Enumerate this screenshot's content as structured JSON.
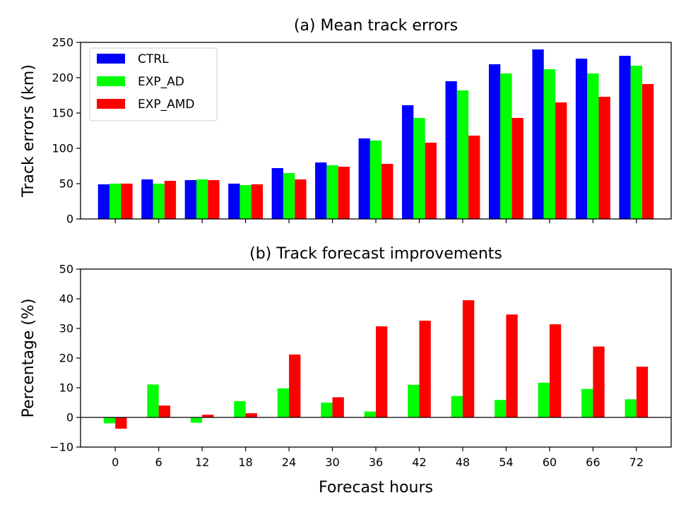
{
  "chart_data": [
    {
      "type": "bar",
      "title": "(a) Mean track errors",
      "xlabel": "",
      "ylabel": "Track errors (km)",
      "categories": [
        "0",
        "6",
        "12",
        "18",
        "24",
        "30",
        "36",
        "42",
        "48",
        "54",
        "60",
        "66",
        "72"
      ],
      "ylim": [
        0,
        250
      ],
      "yticks": [
        "0",
        "50",
        "100",
        "150",
        "200",
        "250"
      ],
      "grid": false,
      "legend": "upper-left",
      "series": [
        {
          "name": "CTRL",
          "color": "#0000ff",
          "values": [
            49,
            56,
            55,
            50,
            72,
            80,
            114,
            161,
            195,
            219,
            240,
            227,
            231
          ]
        },
        {
          "name": "EXP_AD",
          "color": "#00ff00",
          "values": [
            50,
            50,
            56,
            48,
            65,
            76,
            111,
            143,
            182,
            206,
            212,
            206,
            217
          ]
        },
        {
          "name": "EXP_AMD",
          "color": "#ff0000",
          "values": [
            50,
            54,
            55,
            49,
            56,
            74,
            78,
            108,
            118,
            143,
            165,
            173,
            191
          ]
        }
      ]
    },
    {
      "type": "bar",
      "title": "(b) Track forecast improvements",
      "xlabel": "Forecast hours",
      "ylabel": "Percentage (%)",
      "categories": [
        "0",
        "6",
        "12",
        "18",
        "24",
        "30",
        "36",
        "42",
        "48",
        "54",
        "60",
        "66",
        "72"
      ],
      "ylim": [
        -10,
        50
      ],
      "yticks": [
        "−10",
        "0",
        "10",
        "20",
        "30",
        "40",
        "50"
      ],
      "grid": false,
      "series": [
        {
          "color": "#00ff00",
          "values": [
            -2,
            11.1,
            -1.8,
            5.5,
            9.8,
            5.0,
            2.0,
            11.0,
            7.2,
            5.9,
            11.7,
            9.6,
            6.1
          ]
        },
        {
          "color": "#ff0000",
          "values": [
            -3.8,
            4.0,
            0.9,
            1.4,
            21.2,
            6.8,
            30.7,
            32.6,
            39.5,
            34.7,
            31.4,
            23.9,
            17.1
          ]
        }
      ]
    }
  ]
}
